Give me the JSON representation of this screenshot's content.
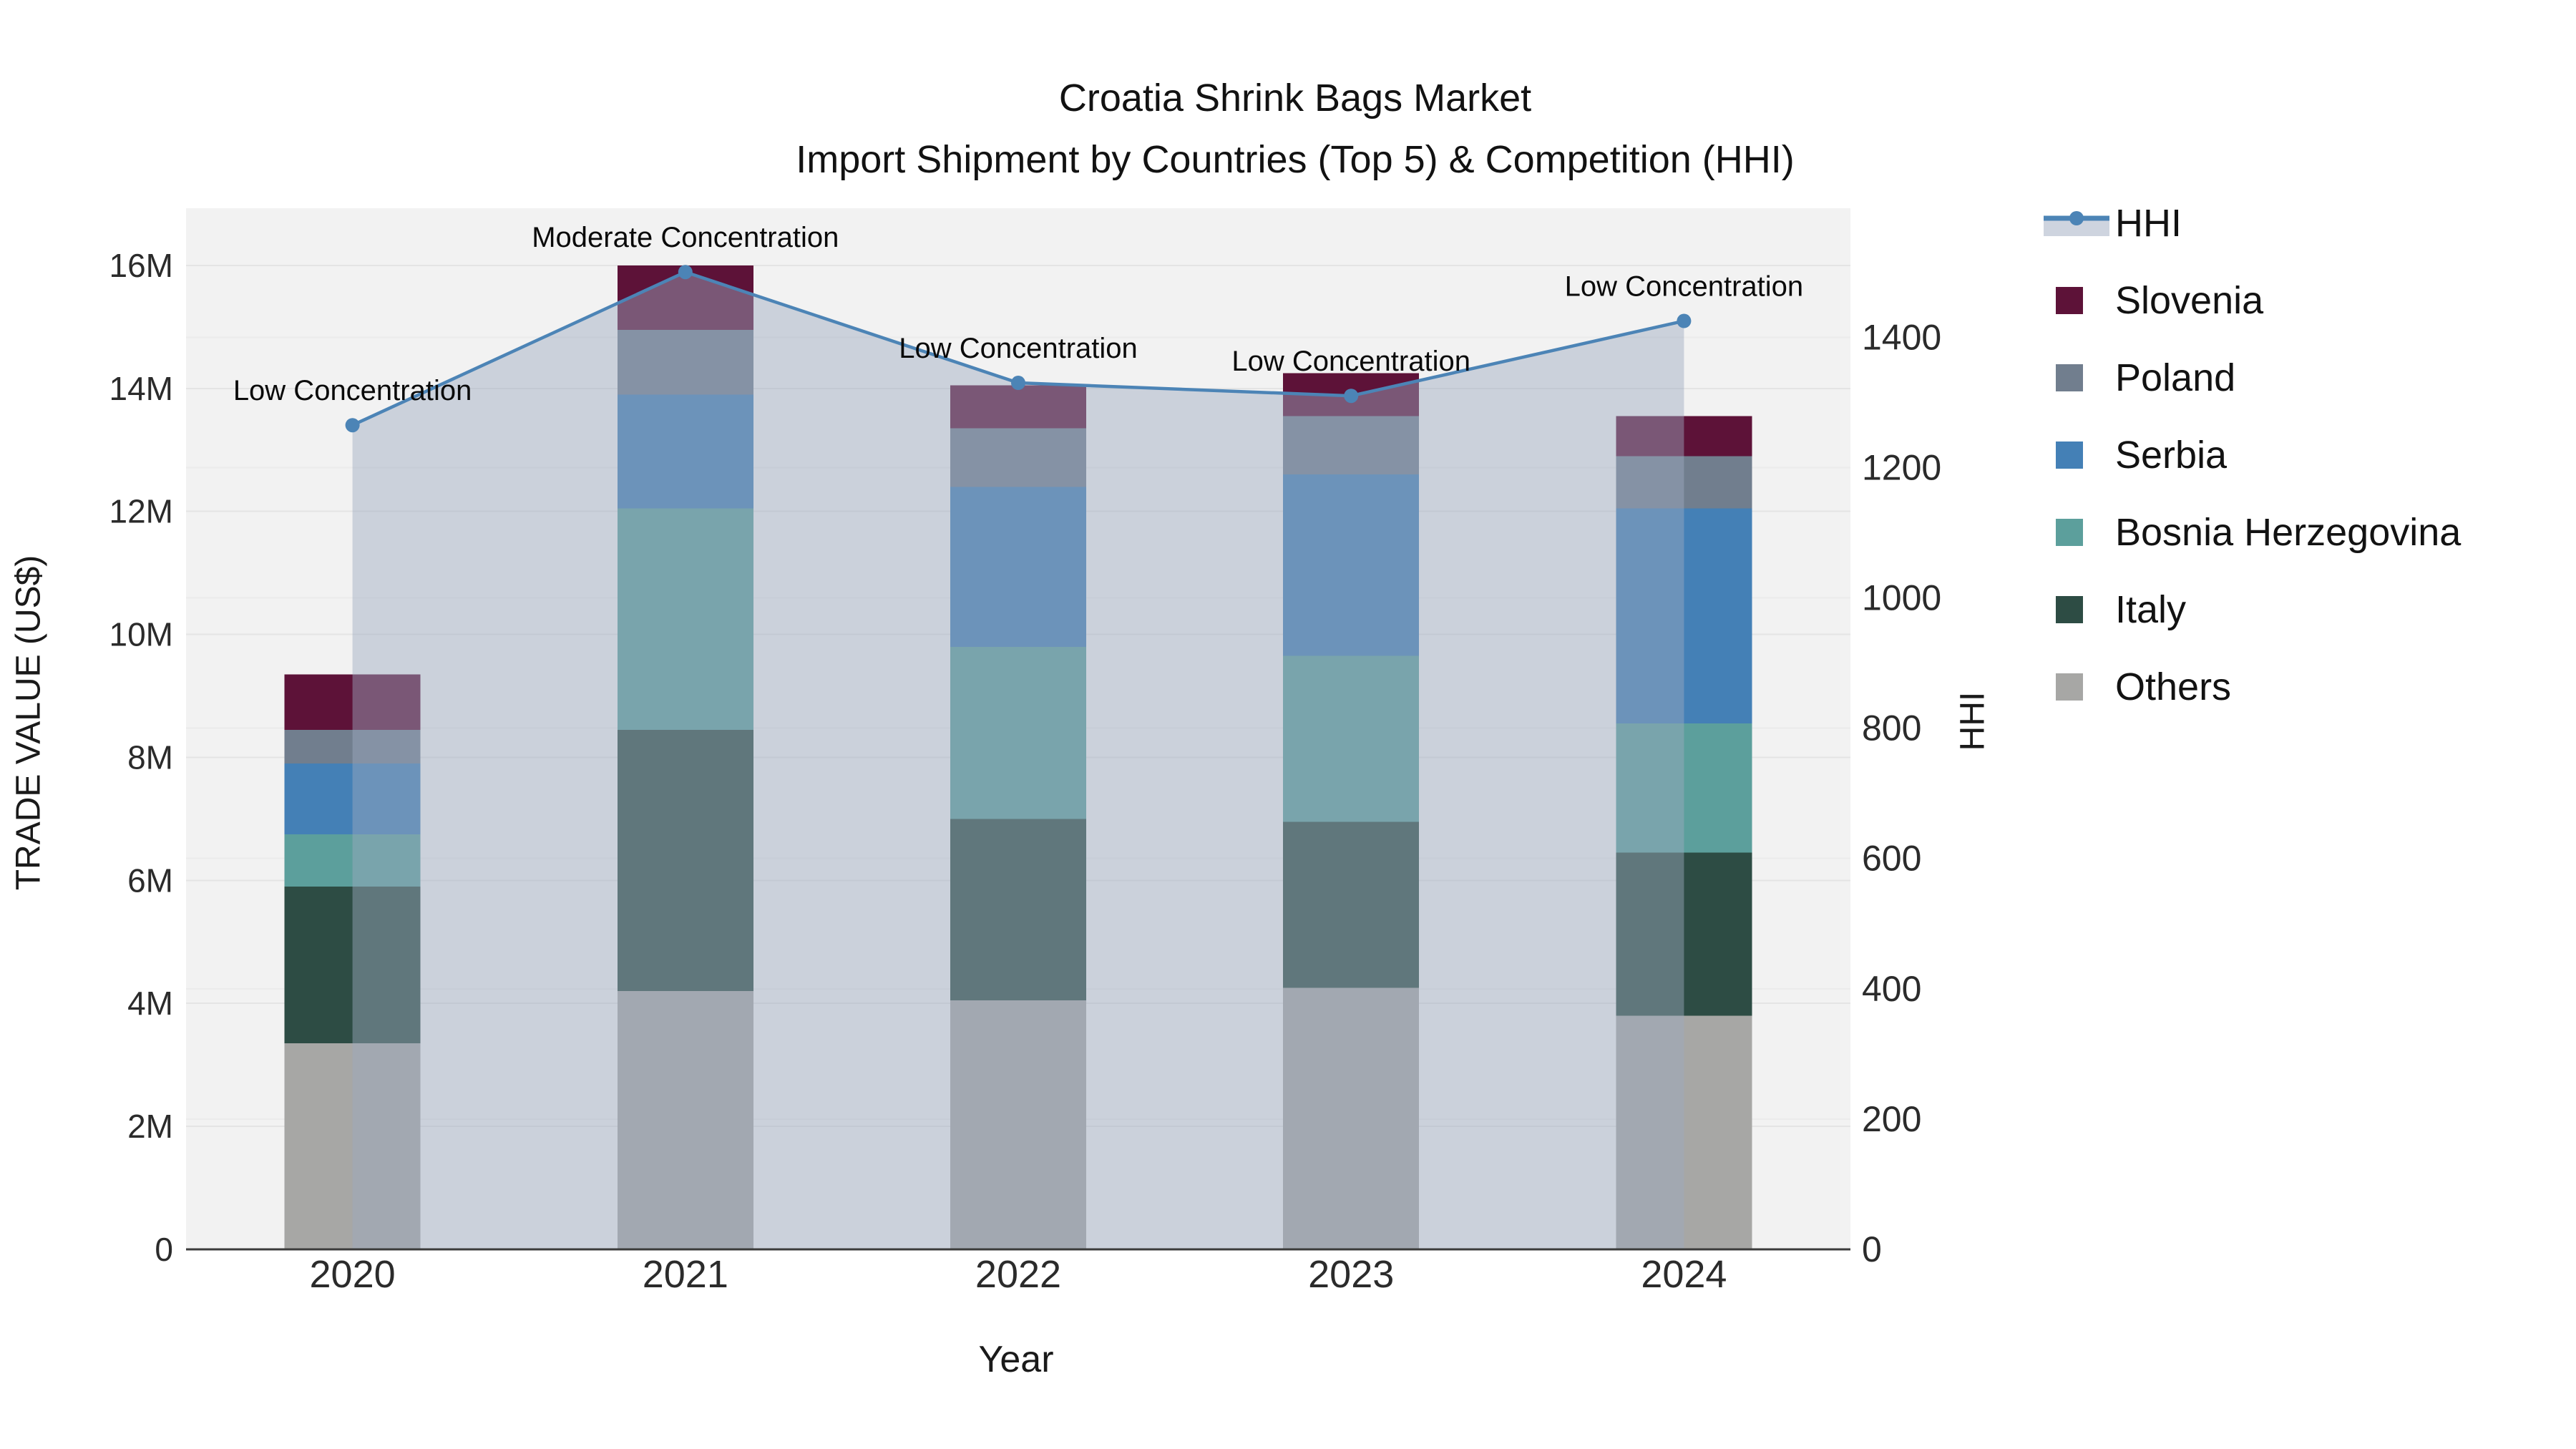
{
  "figure": {
    "title_line1": "Croatia Shrink Bags Market",
    "title_line2": "Import Shipment by Countries (Top 5) & Competition (HHI)",
    "x_axis_title": "Year",
    "y_left_axis_title": "TRADE VALUE (US$)",
    "y_right_axis_title": "HHI"
  },
  "chart_data": {
    "type": "bar",
    "subtype": "stacked-bars-with-hhi-line-and-area",
    "title": "Croatia Shrink Bags Market Import Shipment by Countries (Top 5) & Competition (HHI)",
    "xlabel": "Year",
    "ylabel": "TRADE VALUE (US$)",
    "ylabel_right": "HHI",
    "categories": [
      "2020",
      "2021",
      "2022",
      "2023",
      "2024"
    ],
    "units": "US$ millions",
    "stack_order_bottom_to_top": [
      "Others",
      "Italy",
      "Bosnia Herzegovina",
      "Serbia",
      "Poland",
      "Slovenia"
    ],
    "series": [
      {
        "name": "Others",
        "color": "#A7A7A5",
        "values": [
          3.35,
          4.2,
          4.05,
          4.25,
          3.8
        ]
      },
      {
        "name": "Italy",
        "color": "#2D4C44",
        "values": [
          2.55,
          4.25,
          2.95,
          2.7,
          2.65
        ]
      },
      {
        "name": "Bosnia Herzegovina",
        "color": "#5C9F9C",
        "values": [
          0.85,
          3.6,
          2.8,
          2.7,
          2.1
        ]
      },
      {
        "name": "Serbia",
        "color": "#4480B6",
        "values": [
          1.15,
          1.85,
          2.6,
          2.95,
          3.5
        ]
      },
      {
        "name": "Poland",
        "color": "#717E8E",
        "values": [
          0.55,
          1.05,
          0.95,
          0.95,
          0.85
        ]
      },
      {
        "name": "Slovenia",
        "color": "#5D1238",
        "values": [
          0.9,
          1.05,
          0.7,
          0.7,
          0.65
        ]
      }
    ],
    "bar_totals": [
      9.35,
      16.0,
      14.05,
      14.25,
      13.55
    ],
    "line_series": {
      "name": "HHI",
      "axis": "right",
      "color": "#4C84B6",
      "marker": "circle",
      "values": [
        1265,
        1500,
        1330,
        1310,
        1425
      ],
      "area_fill": "rgba(157, 170, 191, 0.46)"
    },
    "annotations": [
      {
        "category": "2020",
        "text": "Low Concentration"
      },
      {
        "category": "2021",
        "text": "Moderate Concentration"
      },
      {
        "category": "2022",
        "text": "Low Concentration"
      },
      {
        "category": "2023",
        "text": "Low Concentration"
      },
      {
        "category": "2024",
        "text": "Low Concentration"
      }
    ],
    "y_left": {
      "label": "TRADE VALUE (US$)",
      "tick_labels": [
        "0",
        "2M",
        "4M",
        "6M",
        "8M",
        "10M",
        "12M",
        "14M",
        "16M"
      ],
      "tick_values": [
        0,
        2,
        4,
        6,
        8,
        10,
        12,
        14,
        16
      ],
      "max": 16.93
    },
    "y_right": {
      "label": "HHI",
      "tick_labels": [
        "0",
        "200",
        "400",
        "600",
        "800",
        "1000",
        "1200",
        "1400"
      ],
      "tick_values": [
        0,
        200,
        400,
        600,
        800,
        1000,
        1200,
        1400
      ],
      "max": 1598
    },
    "legend_order": [
      "HHI",
      "Slovenia",
      "Poland",
      "Serbia",
      "Bosnia Herzegovina",
      "Italy",
      "Others"
    ],
    "legend_position": "right",
    "grid": true
  },
  "style": {
    "plot_bg": "#F2F2F2",
    "figure_bg": "#FFFFFF",
    "grid_left_axis": "#E4E4E4",
    "grid_right_axis": "#EBEBEB",
    "axis_line": "#3B3B3B",
    "tick_text": "#2B2B2B",
    "annotation_text": "#0A0A0A",
    "hhi_line": "#4C84B6",
    "hhi_area": "rgba(157, 170, 191, 0.46)"
  }
}
